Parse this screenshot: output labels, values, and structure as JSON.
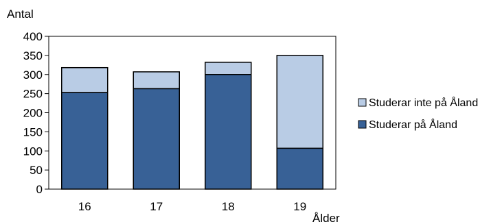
{
  "chart_data": {
    "type": "bar",
    "stacked": true,
    "categories": [
      "16",
      "17",
      "18",
      "19"
    ],
    "series": [
      {
        "name": "Studerar på Åland",
        "values": [
          253,
          263,
          300,
          107
        ],
        "color": "#386196"
      },
      {
        "name": "Studerar inte på Åland",
        "values": [
          65,
          44,
          32,
          243
        ],
        "color": "#b9cce5"
      }
    ],
    "legend_order": [
      1,
      0
    ],
    "ylabel": "Antal",
    "xlabel": "Ålder",
    "ylim": [
      0,
      400
    ],
    "yticks": [
      0,
      50,
      100,
      150,
      200,
      250,
      300,
      350,
      400
    ],
    "grid": false,
    "legend_position": "right",
    "colors": {
      "axis": "#000000",
      "plot_border": "#000000",
      "bar_edge": "#000000"
    }
  }
}
